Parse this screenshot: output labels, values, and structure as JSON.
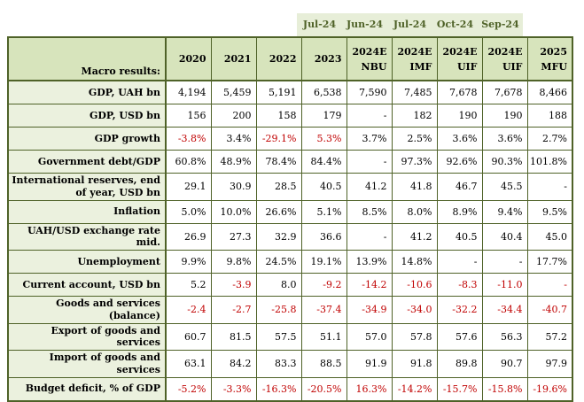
{
  "forecast_band": {
    "labels": [
      "Jul-24",
      "Jun-24",
      "Jul-24",
      "Oct-24",
      "Sep-24"
    ]
  },
  "chart_data": {
    "type": "table",
    "title": "Macro results:",
    "corner_label": "Macro results:",
    "column_headers": [
      {
        "line1": "2020",
        "line2": ""
      },
      {
        "line1": "2021",
        "line2": ""
      },
      {
        "line1": "2022",
        "line2": ""
      },
      {
        "line1": "2023",
        "line2": ""
      },
      {
        "line1": "2024E",
        "line2": "NBU"
      },
      {
        "line1": "2024E",
        "line2": "IMF"
      },
      {
        "line1": "2024E",
        "line2": "UIF"
      },
      {
        "line1": "2024E",
        "line2": "UIF"
      },
      {
        "line1": "2025",
        "line2": "MFU"
      }
    ],
    "rows": [
      {
        "label": "GDP, UAH bn",
        "values": [
          "4,194",
          "5,459",
          "5,191",
          "6,538",
          "7,590",
          "7,485",
          "7,678",
          "7,678",
          "8,466"
        ],
        "red": [
          false,
          false,
          false,
          false,
          false,
          false,
          false,
          false,
          false
        ]
      },
      {
        "label": "GDP, USD bn",
        "values": [
          "156",
          "200",
          "158",
          "179",
          "-",
          "182",
          "190",
          "190",
          "188"
        ],
        "red": [
          false,
          false,
          false,
          false,
          false,
          false,
          false,
          false,
          false
        ]
      },
      {
        "label": "GDP growth",
        "values": [
          "-3.8%",
          "3.4%",
          "-29.1%",
          "5.3%",
          "3.7%",
          "2.5%",
          "3.6%",
          "3.6%",
          "2.7%"
        ],
        "red": [
          true,
          false,
          true,
          true,
          false,
          false,
          false,
          false,
          false
        ]
      },
      {
        "label": "Government debt/GDP",
        "values": [
          "60.8%",
          "48.9%",
          "78.4%",
          "84.4%",
          "-",
          "97.3%",
          "92.6%",
          "90.3%",
          "101.8%"
        ],
        "red": [
          false,
          false,
          false,
          false,
          false,
          false,
          false,
          false,
          false
        ]
      },
      {
        "label": "International reserves, end of year, USD bn",
        "values": [
          "29.1",
          "30.9",
          "28.5",
          "40.5",
          "41.2",
          "41.8",
          "46.7",
          "45.5",
          "-"
        ],
        "red": [
          false,
          false,
          false,
          false,
          false,
          false,
          false,
          false,
          false
        ]
      },
      {
        "label": "Inflation",
        "values": [
          "5.0%",
          "10.0%",
          "26.6%",
          "5.1%",
          "8.5%",
          "8.0%",
          "8.9%",
          "9.4%",
          "9.5%"
        ],
        "red": [
          false,
          false,
          false,
          false,
          false,
          false,
          false,
          false,
          false
        ]
      },
      {
        "label": "UAH/USD exchange rate mid.",
        "values": [
          "26.9",
          "27.3",
          "32.9",
          "36.6",
          "-",
          "41.2",
          "40.5",
          "40.4",
          "45.0"
        ],
        "red": [
          false,
          false,
          false,
          false,
          false,
          false,
          false,
          false,
          false
        ]
      },
      {
        "label": "Unemployment",
        "values": [
          "9.9%",
          "9.8%",
          "24.5%",
          "19.1%",
          "13.9%",
          "14.8%",
          "-",
          "-",
          "17.7%"
        ],
        "red": [
          false,
          false,
          false,
          false,
          false,
          false,
          false,
          false,
          false
        ]
      },
      {
        "label": "Current account, USD bn",
        "values": [
          "5.2",
          "-3.9",
          "8.0",
          "-9.2",
          "-14.2",
          "-10.6",
          "-8.3",
          "-11.0",
          "-"
        ],
        "red": [
          false,
          true,
          false,
          true,
          true,
          true,
          true,
          true,
          true
        ]
      },
      {
        "label": "Goods and services (balance)",
        "values": [
          "-2.4",
          "-2.7",
          "-25.8",
          "-37.4",
          "-34.9",
          "-34.0",
          "-32.2",
          "-34.4",
          "-40.7"
        ],
        "red": [
          true,
          true,
          true,
          true,
          true,
          true,
          true,
          true,
          true
        ]
      },
      {
        "label": "Export of goods and services",
        "values": [
          "60.7",
          "81.5",
          "57.5",
          "51.1",
          "57.0",
          "57.8",
          "57.6",
          "56.3",
          "57.2"
        ],
        "red": [
          false,
          false,
          false,
          false,
          false,
          false,
          false,
          false,
          false
        ]
      },
      {
        "label": "Import of goods and services",
        "values": [
          "63.1",
          "84.2",
          "83.3",
          "88.5",
          "91.9",
          "91.8",
          "89.8",
          "90.7",
          "97.9"
        ],
        "red": [
          false,
          false,
          false,
          false,
          false,
          false,
          false,
          false,
          false
        ]
      },
      {
        "label": "Budget deficit, % of GDP",
        "values": [
          "-5.2%",
          "-3.3%",
          "-16.3%",
          "-20.5%",
          "16.3%",
          "-14.2%",
          "-15.7%",
          "-15.8%",
          "-19.6%"
        ],
        "red": [
          true,
          true,
          true,
          true,
          true,
          true,
          true,
          true,
          true
        ]
      }
    ]
  },
  "colors": {
    "border": "#4f6228",
    "header_bg": "#d7e4bc",
    "label_bg": "#ebf1de",
    "band_bg": "#e7eed8",
    "band_text": "#4f6228",
    "negative_text": "#c00000",
    "text": "#000000"
  }
}
